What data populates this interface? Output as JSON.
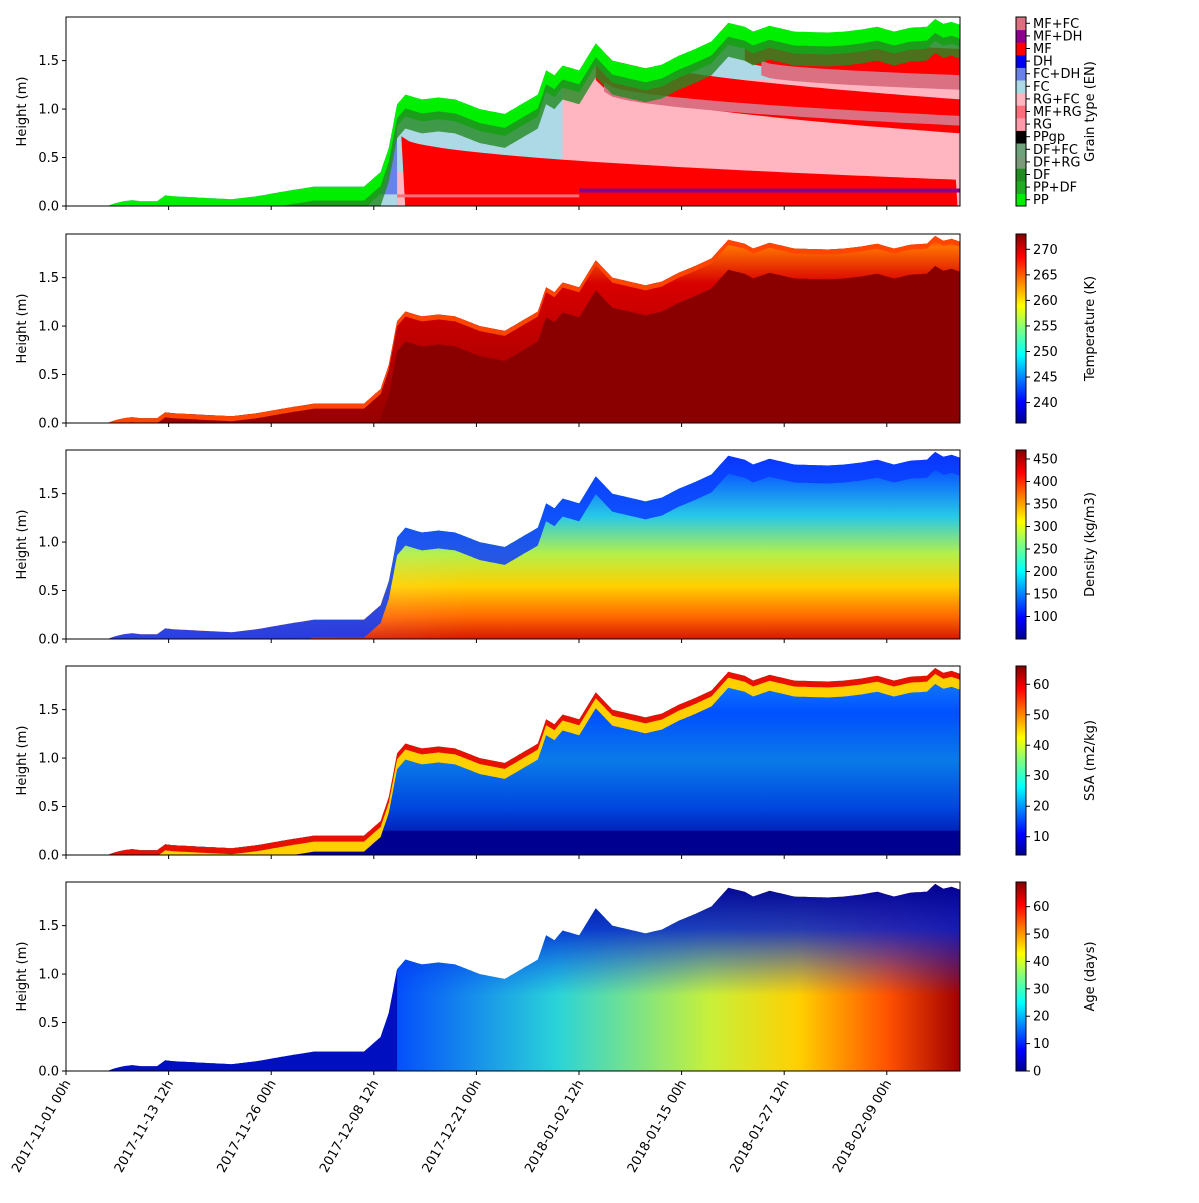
{
  "colors": {
    "PP": "#00ee00",
    "PP+DF": "#22aa22",
    "DF": "#228b22",
    "DF+RG": "#7a9a7a",
    "DF+FC": "#6fa27a",
    "PPgp": "#000000",
    "RG": "#ff9aa8",
    "MF+RG": "#ff6e7a",
    "RG+FC": "#ffb6c1",
    "FC": "#add8e6",
    "FC+DH": "#6a82e6",
    "DH": "#0000ee",
    "MF": "#ff0000",
    "MF+DH": "#8b008b",
    "MF+FC": "#db7082"
  },
  "chart_data": [
    {
      "type": "heatmap",
      "variable": "grain_type",
      "ylabel": "Height (m)",
      "colorbar_label": "Grain type (EN)",
      "categories": [
        "PP",
        "PP+DF",
        "DF",
        "DF+RG",
        "DF+FC",
        "PPgp",
        "RG",
        "MF+RG",
        "RG+FC",
        "FC",
        "FC+DH",
        "DH",
        "MF",
        "MF+DH",
        "MF+FC"
      ],
      "yticks": [
        0.0,
        0.5,
        1.0,
        1.5
      ],
      "ylim": [
        0,
        1.95
      ]
    },
    {
      "type": "heatmap",
      "variable": "temperature",
      "ylabel": "Height (m)",
      "colorbar_label": "Temperature (K)",
      "yticks": [
        0.0,
        0.5,
        1.0,
        1.5
      ],
      "ylim": [
        0,
        1.95
      ],
      "color_range": [
        236,
        273
      ],
      "cbar_ticks": [
        240,
        245,
        250,
        255,
        260,
        265,
        270
      ]
    },
    {
      "type": "heatmap",
      "variable": "density",
      "ylabel": "Height (m)",
      "colorbar_label": "Density (kg/m3)",
      "yticks": [
        0.0,
        0.5,
        1.0,
        1.5
      ],
      "ylim": [
        0,
        1.95
      ],
      "color_range": [
        50,
        470
      ],
      "cbar_ticks": [
        100,
        150,
        200,
        250,
        300,
        350,
        400,
        450
      ]
    },
    {
      "type": "heatmap",
      "variable": "ssa",
      "ylabel": "Height (m)",
      "colorbar_label": "SSA (m2/kg)",
      "yticks": [
        0.0,
        0.5,
        1.0,
        1.5
      ],
      "ylim": [
        0,
        1.95
      ],
      "color_range": [
        4,
        66
      ],
      "cbar_ticks": [
        10,
        20,
        30,
        40,
        50,
        60
      ]
    },
    {
      "type": "heatmap",
      "variable": "age",
      "ylabel": "Height (m)",
      "colorbar_label": "Age (days)",
      "yticks": [
        0.0,
        0.5,
        1.0,
        1.5
      ],
      "ylim": [
        0,
        1.95
      ],
      "color_range": [
        0,
        69
      ],
      "cbar_ticks": [
        0,
        10,
        20,
        30,
        40,
        50,
        60
      ]
    }
  ],
  "xticks": [
    "2017-11-01 00h",
    "2017-11-13 12h",
    "2017-11-26 00h",
    "2017-12-08 12h",
    "2017-12-21 00h",
    "2018-01-02 12h",
    "2018-01-15 00h",
    "2018-01-27 12h",
    "2018-02-09 00h"
  ],
  "xlim_days": [
    0,
    108
  ],
  "snow_height": {
    "days": [
      0,
      5,
      6,
      7,
      8,
      9,
      11,
      12,
      13,
      20,
      23,
      25,
      27,
      30,
      33,
      36,
      38,
      39,
      40,
      41,
      43,
      45,
      47,
      50,
      53,
      56,
      57,
      58,
      59,
      60,
      62,
      64,
      66,
      67,
      70,
      72,
      74,
      76,
      78,
      80,
      82,
      83,
      85,
      88,
      92,
      94,
      96,
      98,
      100,
      102,
      104,
      105,
      106,
      107,
      108
    ],
    "heights_m": [
      0,
      0,
      0.03,
      0.05,
      0.06,
      0.05,
      0.05,
      0.11,
      0.1,
      0.07,
      0.1,
      0.13,
      0.16,
      0.2,
      0.2,
      0.2,
      0.35,
      0.6,
      1.05,
      1.15,
      1.1,
      1.12,
      1.1,
      1.0,
      0.95,
      1.1,
      1.15,
      1.4,
      1.35,
      1.45,
      1.4,
      1.68,
      1.5,
      1.48,
      1.42,
      1.46,
      1.55,
      1.62,
      1.7,
      1.89,
      1.85,
      1.8,
      1.86,
      1.8,
      1.79,
      1.8,
      1.82,
      1.85,
      1.8,
      1.84,
      1.85,
      1.93,
      1.88,
      1.9,
      1.87
    ]
  }
}
